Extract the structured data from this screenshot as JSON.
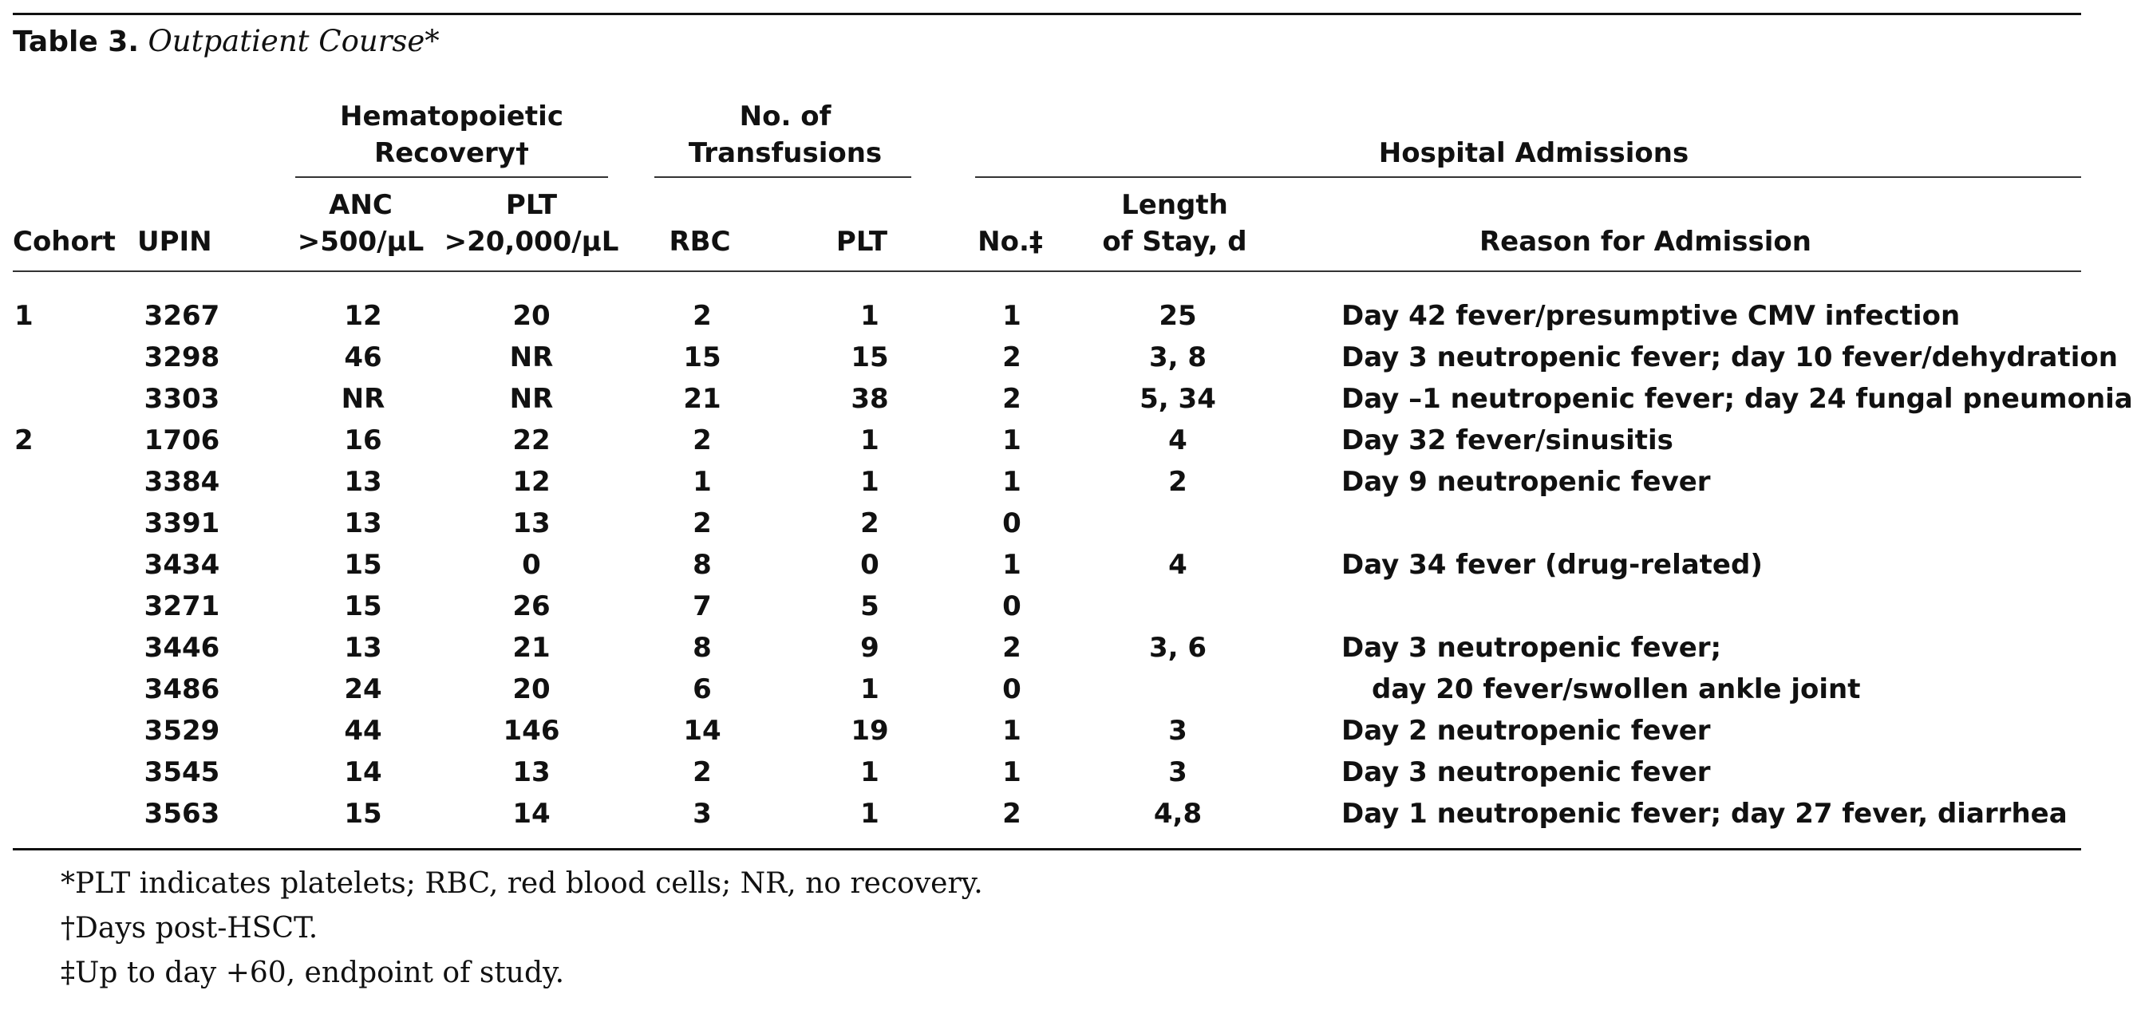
{
  "table": {
    "label": "Table 3.",
    "caption": "Outpatient Course*",
    "group_headers": {
      "hematopoietic_l1": "Hematopoietic",
      "hematopoietic_l2": "Recovery†",
      "transfusions_l1": "No. of",
      "transfusions_l2": "Transfusions",
      "admissions": "Hospital Admissions"
    },
    "columns": {
      "cohort": "Cohort",
      "upin": "UPIN",
      "anc_l1": "ANC",
      "anc_l2": ">500/µL",
      "plt_rec_l1": "PLT",
      "plt_rec_l2": ">20,000/µL",
      "rbc": "RBC",
      "plt_tx": "PLT",
      "no": "No.‡",
      "los_l1": "Length",
      "los_l2": "of Stay, d",
      "reason": "Reason for Admission"
    },
    "rows": [
      {
        "cohort": "1",
        "upin": "3267",
        "anc": "12",
        "plt_rec": "20",
        "rbc": "2",
        "plt_tx": "1",
        "no": "1",
        "los": "25",
        "reason": "Day 42 fever/presumptive CMV infection"
      },
      {
        "cohort": "",
        "upin": "3298",
        "anc": "46",
        "plt_rec": "NR",
        "rbc": "15",
        "plt_tx": "15",
        "no": "2",
        "los": "3, 8",
        "reason": "Day 3 neutropenic fever; day 10 fever/dehydration"
      },
      {
        "cohort": "",
        "upin": "3303",
        "anc": "NR",
        "plt_rec": "NR",
        "rbc": "21",
        "plt_tx": "38",
        "no": "2",
        "los": "5, 34",
        "reason": "Day –1 neutropenic fever; day 24 fungal pneumonia"
      },
      {
        "cohort": "2",
        "upin": "1706",
        "anc": "16",
        "plt_rec": "22",
        "rbc": "2",
        "plt_tx": "1",
        "no": "1",
        "los": "4",
        "reason": "Day 32 fever/sinusitis"
      },
      {
        "cohort": "",
        "upin": "3384",
        "anc": "13",
        "plt_rec": "12",
        "rbc": "1",
        "plt_tx": "1",
        "no": "1",
        "los": "2",
        "reason": "Day 9 neutropenic fever"
      },
      {
        "cohort": "",
        "upin": "3391",
        "anc": "13",
        "plt_rec": "13",
        "rbc": "2",
        "plt_tx": "2",
        "no": "0",
        "los": "",
        "reason": ""
      },
      {
        "cohort": "",
        "upin": "3434",
        "anc": "15",
        "plt_rec": "0",
        "rbc": "8",
        "plt_tx": "0",
        "no": "1",
        "los": "4",
        "reason": "Day 34 fever (drug-related)"
      },
      {
        "cohort": "",
        "upin": "3271",
        "anc": "15",
        "plt_rec": "26",
        "rbc": "7",
        "plt_tx": "5",
        "no": "0",
        "los": "",
        "reason": ""
      },
      {
        "cohort": "",
        "upin": "3446",
        "anc": "13",
        "plt_rec": "21",
        "rbc": "8",
        "plt_tx": "9",
        "no": "2",
        "los": "3, 6",
        "reason": "Day 3 neutropenic fever;"
      },
      {
        "cohort": "",
        "upin": "3486",
        "anc": "24",
        "plt_rec": "20",
        "rbc": "6",
        "plt_tx": "1",
        "no": "0",
        "los": "",
        "reason": "day 20 fever/swollen ankle joint"
      },
      {
        "cohort": "",
        "upin": "3529",
        "anc": "44",
        "plt_rec": "146",
        "rbc": "14",
        "plt_tx": "19",
        "no": "1",
        "los": "3",
        "reason": "Day 2 neutropenic fever"
      },
      {
        "cohort": "",
        "upin": "3545",
        "anc": "14",
        "plt_rec": "13",
        "rbc": "2",
        "plt_tx": "1",
        "no": "1",
        "los": "3",
        "reason": "Day 3 neutropenic fever"
      },
      {
        "cohort": "",
        "upin": "3563",
        "anc": "15",
        "plt_rec": "14",
        "rbc": "3",
        "plt_tx": "1",
        "no": "2",
        "los": "4,8",
        "reason": "Day 1 neutropenic fever; day 27 fever, diarrhea"
      }
    ],
    "footnotes": [
      "*PLT indicates platelets; RBC, red blood cells; NR, no recovery.",
      "†Days post-HSCT.",
      "‡Up to day +60, endpoint of study."
    ]
  }
}
